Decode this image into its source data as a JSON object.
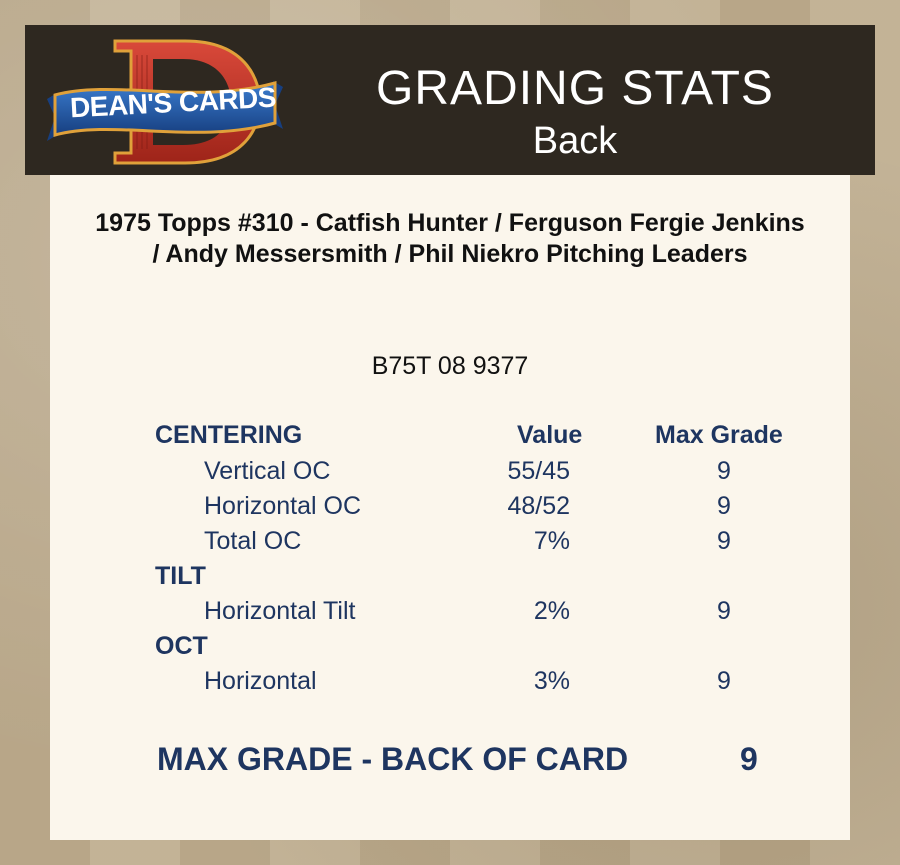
{
  "header": {
    "logo_text": "DEAN'S CARDS",
    "title": "GRADING STATS",
    "subtitle": "Back"
  },
  "card": {
    "title": "1975 Topps #310  -  Catfish Hunter / Ferguson Fergie Jenkins / Andy Messersmith / Phil Niekro Pitching Leaders",
    "cert_number": "B75T 08 9377"
  },
  "table": {
    "value_header": "Value",
    "max_grade_header": "Max Grade",
    "sections": [
      {
        "name": "CENTERING",
        "rows": [
          {
            "label": "Vertical OC",
            "value": "55/45",
            "max": "9"
          },
          {
            "label": "Horizontal OC",
            "value": "48/52",
            "max": "9"
          },
          {
            "label": "Total OC",
            "value": "7%",
            "max": "9"
          }
        ]
      },
      {
        "name": "TILT",
        "rows": [
          {
            "label": "Horizontal Tilt",
            "value": "2%",
            "max": "9"
          }
        ]
      },
      {
        "name": "OCT",
        "rows": [
          {
            "label": "Horizontal",
            "value": "3%",
            "max": "9"
          }
        ]
      }
    ]
  },
  "summary": {
    "label": "MAX GRADE - BACK OF CARD",
    "value": "9"
  },
  "colors": {
    "header_bg": "#2e2820",
    "panel_bg": "#fbf6ec",
    "stats_text": "#1e3560",
    "logo_red": "#c8372c",
    "logo_blue": "#1f5aa6"
  }
}
